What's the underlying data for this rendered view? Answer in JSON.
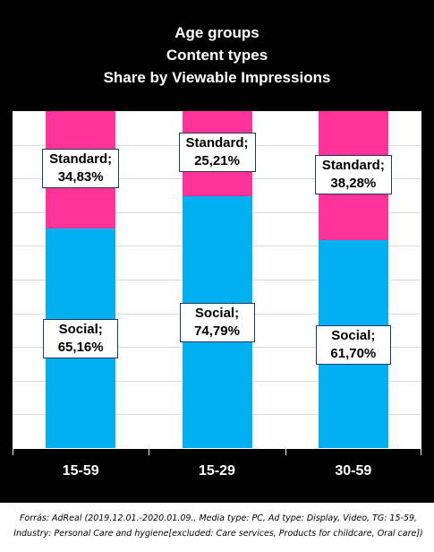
{
  "chart_data": {
    "type": "bar",
    "stacked": true,
    "title_lines": [
      "Age groups",
      "Content types",
      "Share by Viewable Impressions"
    ],
    "categories": [
      "15-59",
      "15-29",
      "30-59"
    ],
    "series": [
      {
        "name": "Social",
        "values": [
          65.16,
          74.79,
          61.7
        ],
        "labels": [
          "65,16%",
          "74,79%",
          "61,70%"
        ],
        "color": "#00b0f0"
      },
      {
        "name": "Standard",
        "values": [
          34.83,
          25.21,
          38.28
        ],
        "labels": [
          "34,83%",
          "25,21%",
          "38,28%"
        ],
        "color": "#ff3399"
      }
    ],
    "ylim": [
      0,
      100
    ],
    "grid": true
  },
  "colors": {
    "panel_background": "#000000",
    "plot_background": "#ffffff",
    "text_light": "#ffffff"
  },
  "footer": {
    "source_lines": [
      "Forrás: AdReal (2019.12.01.-2020.01.09., Media type: PC, Ad type: Display, Video, TG: 15-59,",
      "Industry: Personal Care and hygiene[excluded: Care services, Products for childcare, Oral care])"
    ]
  }
}
